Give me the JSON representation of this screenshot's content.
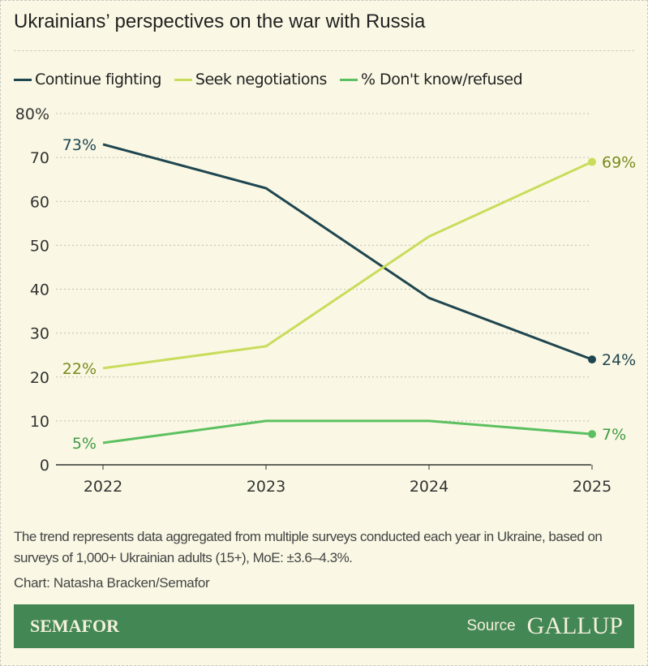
{
  "title": "Ukrainians’ perspectives on the war with Russia",
  "note": "The trend represents data aggregated from multiple surveys conducted each year in Ukraine, based on surveys of 1,000+ Ukrainian adults (15+), MoE: ±3.6–4.3%.",
  "credit": "Chart: Natasha Bracken/Semafor",
  "footer": {
    "brand": "SEMAFOR",
    "source_label": "Source",
    "source_logo": "GALLUP"
  },
  "chart_data": {
    "type": "line",
    "x": [
      "2022",
      "2023",
      "2024",
      "2025"
    ],
    "ylim": [
      0,
      80
    ],
    "yticks": [
      0,
      10,
      20,
      30,
      40,
      50,
      60,
      70,
      80
    ],
    "ytick_labels": [
      "0",
      "10",
      "20",
      "30",
      "40",
      "50",
      "60",
      "70",
      "80%"
    ],
    "grid": true,
    "legend": "top-left",
    "series": [
      {
        "name": "Continue fighting",
        "values": [
          73,
          63,
          38,
          24
        ],
        "color": "#1f4650",
        "start_label": "73%",
        "end_label": "24%"
      },
      {
        "name": "Seek negotiations",
        "values": [
          22,
          27,
          52,
          69
        ],
        "color": "#c9dc5c",
        "label_color": "#7a8a1e",
        "start_label": "22%",
        "end_label": "69%"
      },
      {
        "name": "% Don't know/refused",
        "values": [
          5,
          10,
          10,
          7
        ],
        "color": "#5cc060",
        "label_color": "#3f9a45",
        "start_label": "5%",
        "end_label": "7%"
      }
    ]
  }
}
